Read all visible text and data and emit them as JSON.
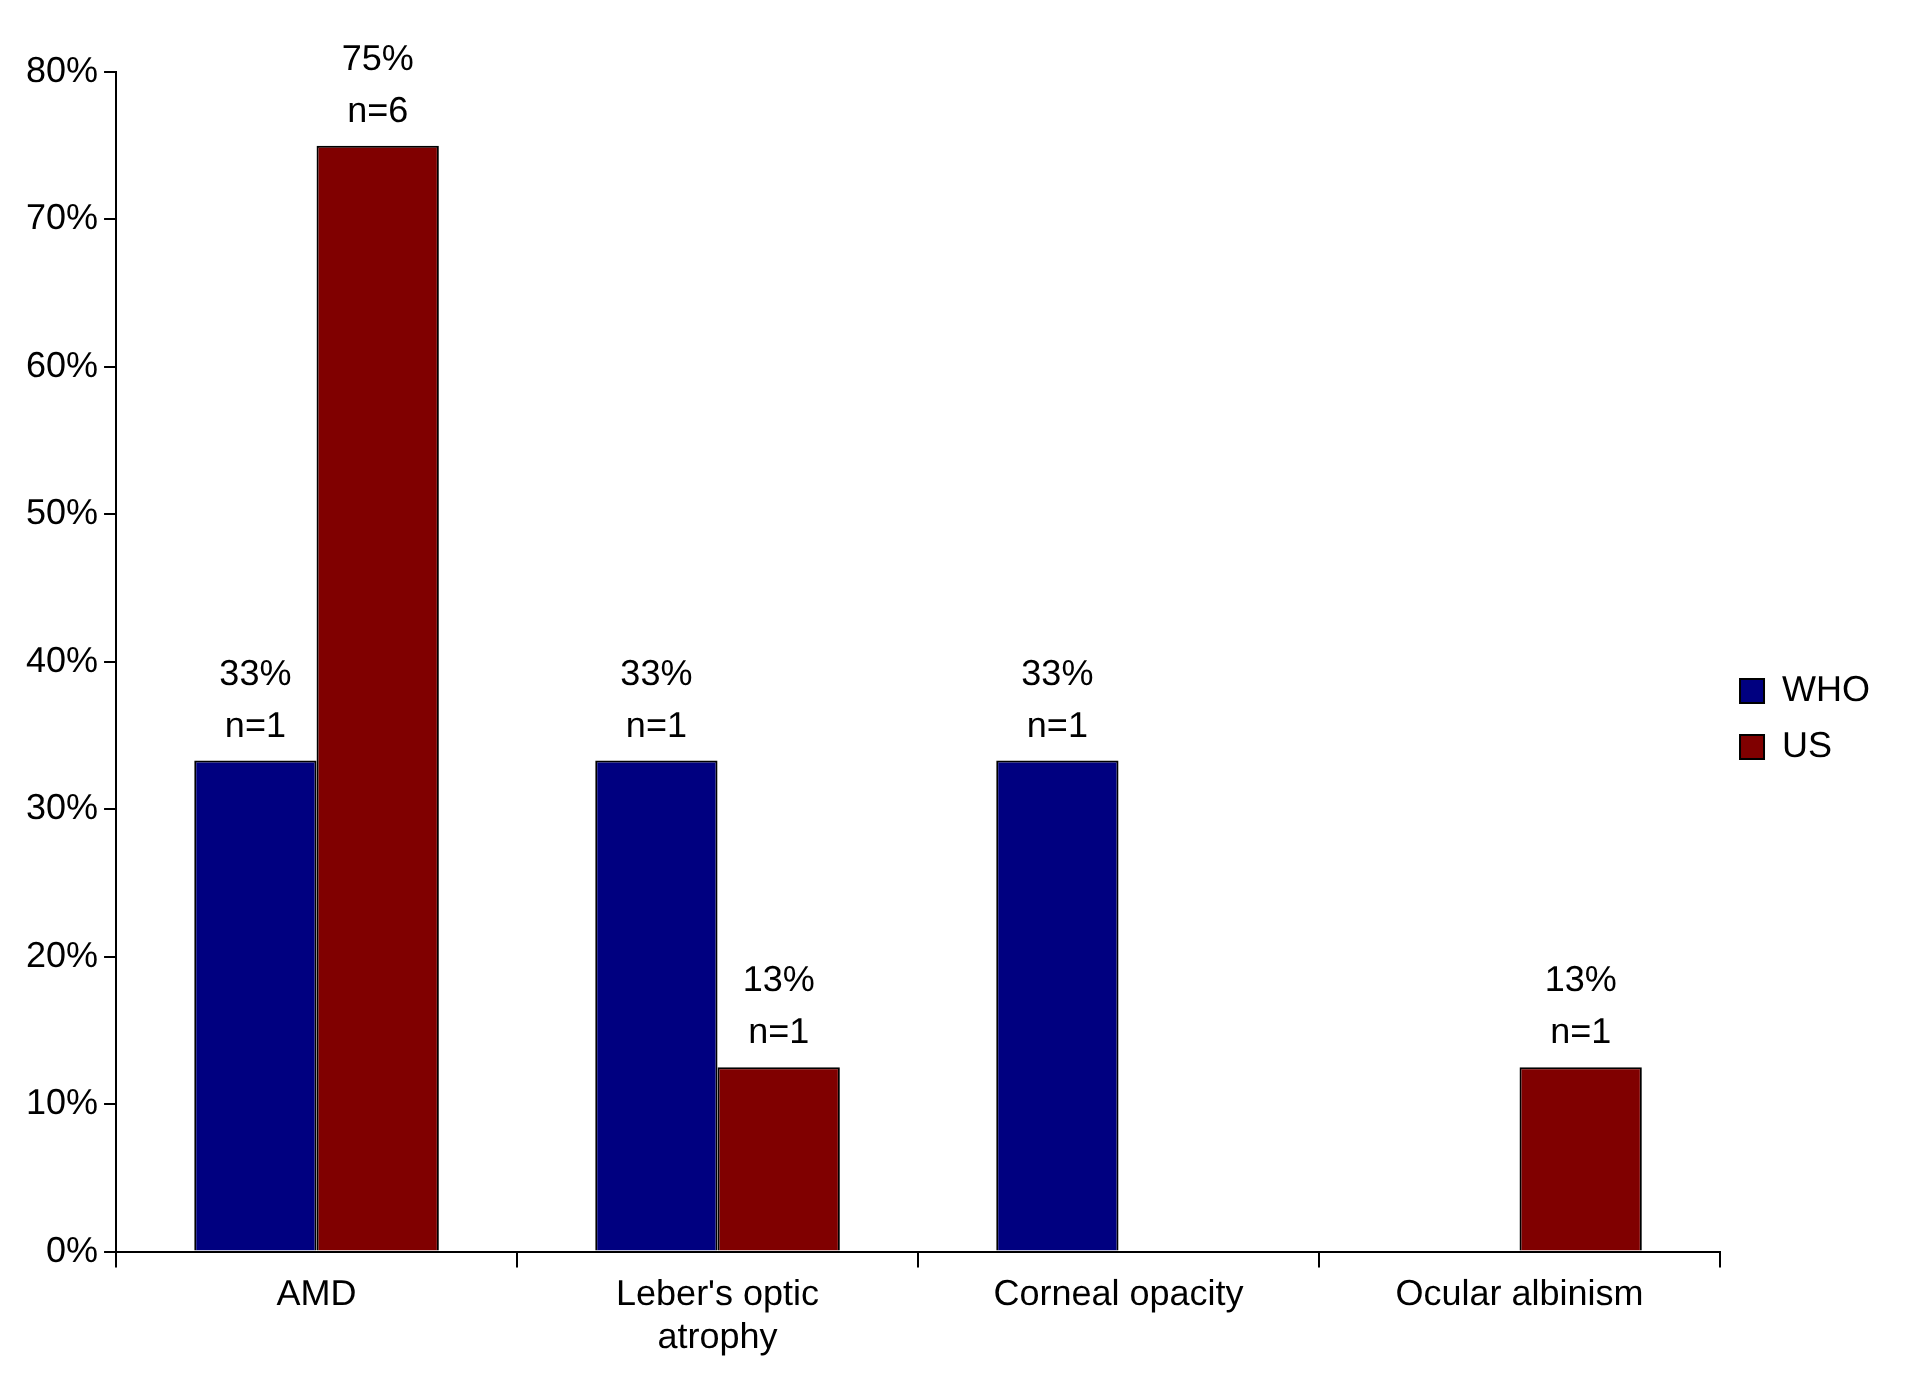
{
  "chart_data": {
    "type": "bar",
    "categories": [
      "AMD",
      "Leber's optic atrophy",
      "Corneal opacity",
      "Ocular albinism"
    ],
    "series": [
      {
        "name": "WHO",
        "color": "#000080",
        "values": [
          33.3,
          33.3,
          33.3,
          null
        ],
        "value_labels": [
          "33%\nn=1",
          "33%\nn=1",
          "33%\nn=1",
          null
        ]
      },
      {
        "name": "US",
        "color": "#800000",
        "values": [
          75,
          12.5,
          null,
          12.5
        ],
        "value_labels": [
          "75%\nn=6",
          "13%\nn=1",
          null,
          "13%\nn=1"
        ]
      }
    ],
    "ylim": [
      0,
      80
    ],
    "yticks": [
      {
        "value": 0,
        "label": "0%"
      },
      {
        "value": 10,
        "label": "10%"
      },
      {
        "value": 20,
        "label": "20%"
      },
      {
        "value": 30,
        "label": "30%"
      },
      {
        "value": 40,
        "label": "40%"
      },
      {
        "value": 50,
        "label": "50%"
      },
      {
        "value": 60,
        "label": "60%"
      },
      {
        "value": 70,
        "label": "70%"
      },
      {
        "value": 80,
        "label": "80%"
      }
    ],
    "grid": false,
    "legend": "right"
  }
}
